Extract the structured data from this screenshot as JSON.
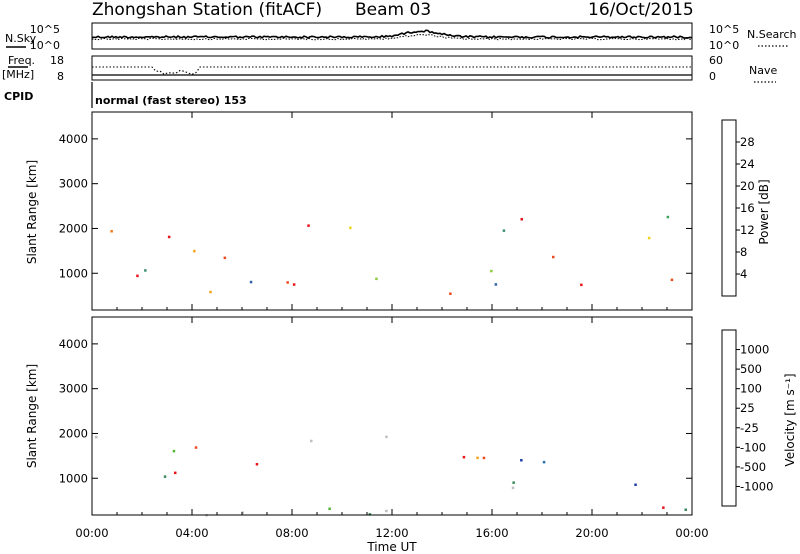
{
  "header": {
    "station": "Zhongshan Station (fitACF)",
    "beam": "Beam 03",
    "date": "16/Oct/2015"
  },
  "status_panels": {
    "nsky_label": "N.Sky",
    "nsearch_label": "N.Search",
    "noise_ticks": [
      "10^5",
      "10^0"
    ],
    "freq_label": "Freq.",
    "freq_unit": "[MHz]",
    "freq_ticks": [
      "18",
      "8"
    ],
    "nave_label": "Nave",
    "nave_ticks": [
      "60",
      "0"
    ],
    "cpid_label": "CPID",
    "cpid_text": "normal (fast stereo) 153"
  },
  "chart_data": [
    {
      "type": "heatmap",
      "name": "power",
      "ylabel": "Slant Range [km]",
      "xlabel": "",
      "y_ticks": [
        "4000",
        "3000",
        "2000",
        "1000"
      ],
      "x_ticks": [
        "00:00",
        "04:00",
        "08:00",
        "12:00",
        "16:00",
        "20:00",
        "00:00"
      ],
      "xlim": [
        0,
        24
      ],
      "ylim": [
        180,
        4600
      ],
      "colorbar_label": "Power [dB]",
      "colorbar_ticks": [
        "28",
        "24",
        "20",
        "16",
        "12",
        "8",
        "4"
      ],
      "colorbar_colors": [
        "#e8141c",
        "#ef4a1e",
        "#f37c1d",
        "#f5a31c",
        "#f1d21b",
        "#8ccc3a",
        "#3aa35a",
        "#3c8d77",
        "#2e62a8",
        "#1436d8",
        "#0a16f0"
      ],
      "scatter_regions": [
        {
          "t": [
            0.0,
            4.5
          ],
          "r": [
            200,
            2000
          ]
        },
        {
          "t": [
            4.5,
            7.5
          ],
          "r": [
            200,
            1700
          ]
        },
        {
          "t": [
            7.5,
            12.8
          ],
          "r": [
            1800,
            2350
          ]
        },
        {
          "t": [
            7.5,
            12.5
          ],
          "r": [
            200,
            1100
          ]
        },
        {
          "t": [
            13.8,
            20.0
          ],
          "r": [
            300,
            2300
          ]
        },
        {
          "t": [
            21.5,
            24.0
          ],
          "r": [
            300,
            2400
          ]
        }
      ]
    },
    {
      "type": "heatmap",
      "name": "velocity",
      "ylabel": "Slant Range [km]",
      "xlabel": "Time UT",
      "y_ticks": [
        "4000",
        "3000",
        "2000",
        "1000"
      ],
      "x_ticks": [
        "00:00",
        "04:00",
        "08:00",
        "12:00",
        "16:00",
        "20:00",
        "00:00"
      ],
      "xlim": [
        0,
        24
      ],
      "ylim": [
        180,
        4600
      ],
      "colorbar_label": "Velocity [m s⁻¹]",
      "colorbar_ticks": [
        "1000",
        "500",
        "100",
        "25",
        "-25",
        "-100",
        "-500",
        "-1000"
      ],
      "colorbar_colors": [
        "#1e3fa8",
        "#2a6fa8",
        "#3a8a5a",
        "#52b83a",
        "#bebebe",
        "#f5a31c",
        "#f37c1d",
        "#ef4a1e",
        "#e8141c"
      ],
      "scatter_regions": [
        {
          "t": [
            0.0,
            4.5
          ],
          "r": [
            200,
            2000
          ]
        },
        {
          "t": [
            4.5,
            7.5
          ],
          "r": [
            200,
            1700
          ]
        },
        {
          "t": [
            7.5,
            12.8
          ],
          "r": [
            1800,
            2350
          ]
        },
        {
          "t": [
            7.5,
            12.5
          ],
          "r": [
            200,
            1100
          ]
        },
        {
          "t": [
            13.8,
            20.0
          ],
          "r": [
            300,
            2300
          ]
        },
        {
          "t": [
            21.5,
            24.0
          ],
          "r": [
            300,
            2400
          ]
        }
      ]
    }
  ]
}
